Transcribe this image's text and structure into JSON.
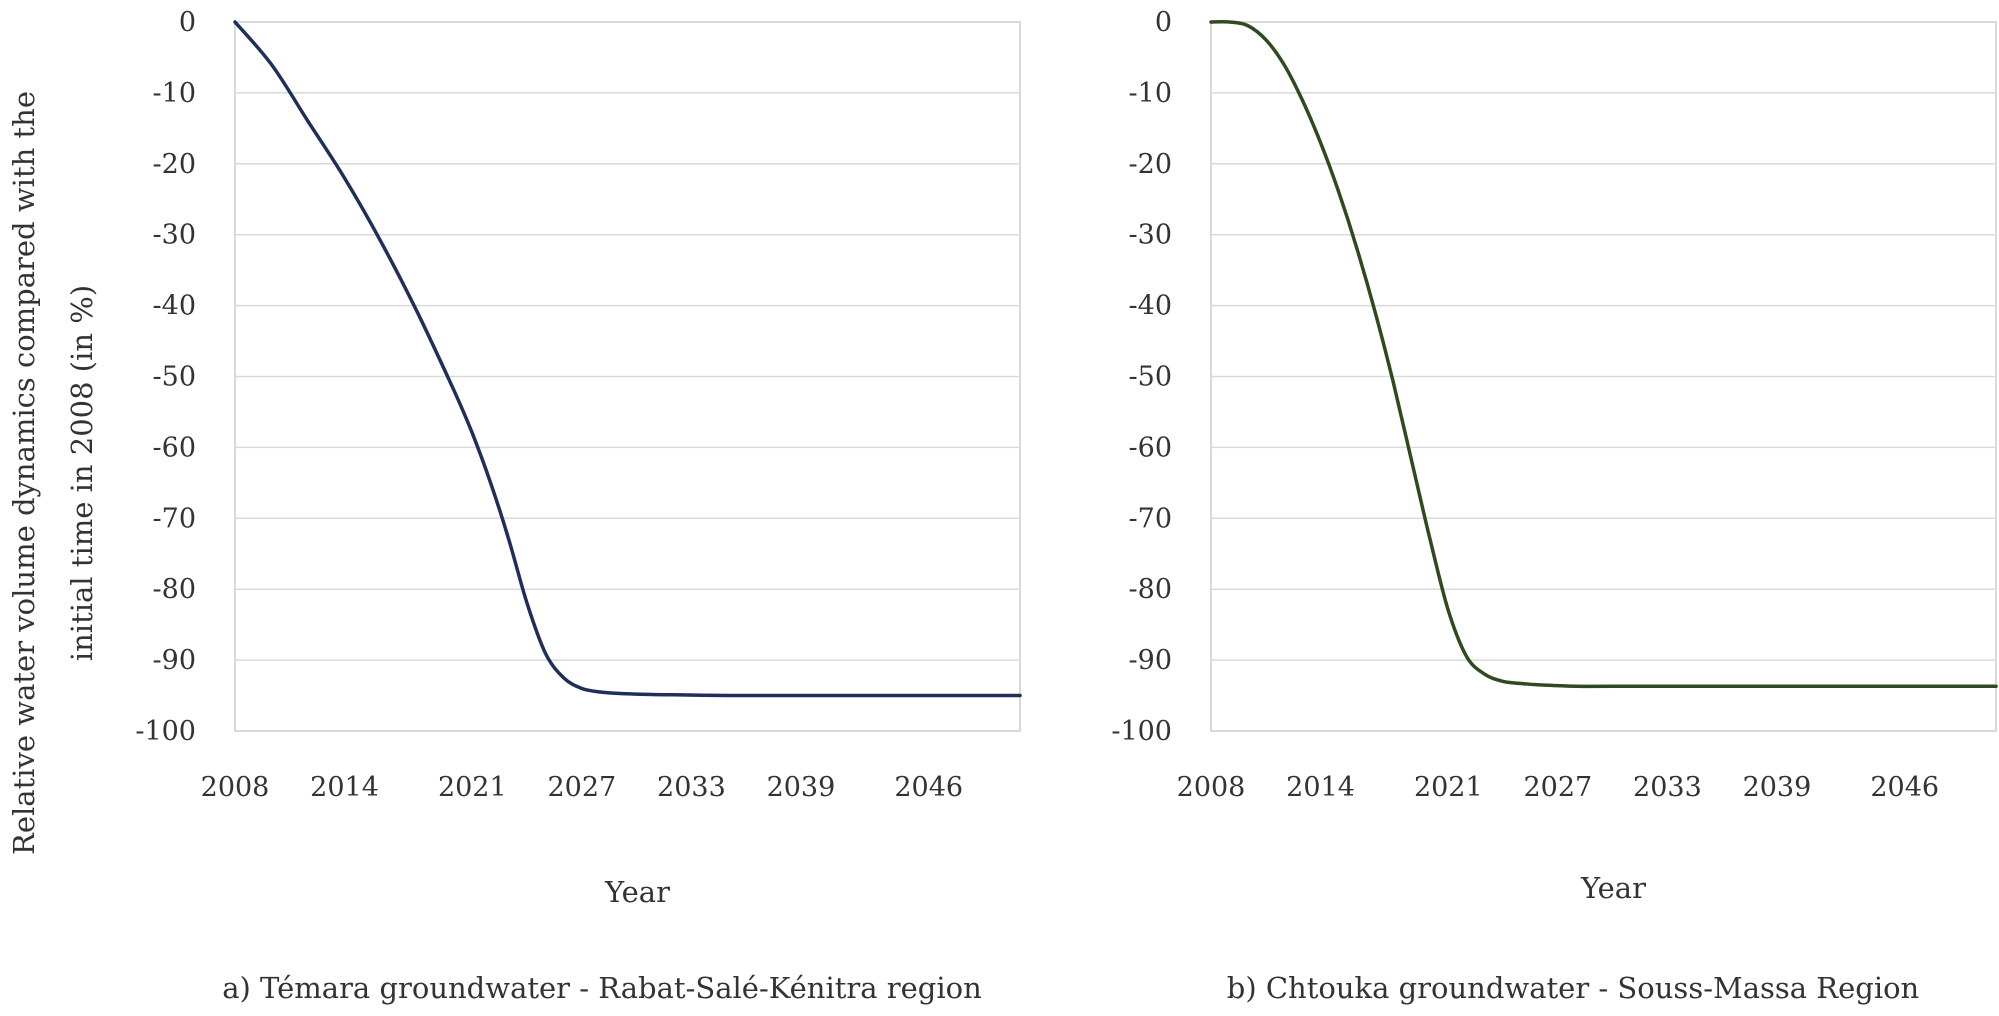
{
  "shared": {
    "ylabel_line1": "Relative water volume dynamics compared with the",
    "ylabel_line2": "initial time in 2008   (in %)"
  },
  "chart_data": [
    {
      "type": "line",
      "caption": "a) Témara groundwater - Rabat-Salé-Kénitra region",
      "xlabel": "Year",
      "ylabel": "Relative water volume dynamics compared with the initial time in 2008 (in %)",
      "xlim": [
        2008,
        2051
      ],
      "ylim": [
        -100,
        0
      ],
      "x_ticks": [
        2008,
        2014,
        2021,
        2027,
        2033,
        2039,
        2046
      ],
      "x_tick_labels": [
        "2008",
        "2014",
        "2021",
        "2027",
        "2033",
        "2039",
        "2046"
      ],
      "y_ticks": [
        0,
        -10,
        -20,
        -30,
        -40,
        -50,
        -60,
        -70,
        -80,
        -90,
        -100
      ],
      "y_tick_labels": [
        "0",
        "-10",
        "-20",
        "-30",
        "-40",
        "-50",
        "-60",
        "-70",
        "-80",
        "-90",
        "-100"
      ],
      "grid": "horizontal",
      "line_color": "#1f2f5a",
      "series": [
        {
          "x": [
            2008,
            2010,
            2012,
            2014,
            2016,
            2018,
            2020,
            2021,
            2022,
            2023,
            2024,
            2025,
            2026,
            2027,
            2028,
            2029,
            2030,
            2032,
            2035,
            2040,
            2045,
            2051
          ],
          "values": [
            0,
            -6,
            -14,
            -22,
            -31,
            -41,
            -52,
            -58,
            -65,
            -73,
            -82,
            -89,
            -92.5,
            -94,
            -94.5,
            -94.7,
            -94.8,
            -94.9,
            -95,
            -95,
            -95,
            -95
          ]
        }
      ]
    },
    {
      "type": "line",
      "caption": "b) Chtouka groundwater - Souss-Massa Region",
      "xlabel": "Year",
      "xlim": [
        2008,
        2051
      ],
      "ylim": [
        -100,
        0
      ],
      "x_ticks": [
        2008,
        2014,
        2021,
        2027,
        2033,
        2039,
        2046
      ],
      "x_tick_labels": [
        "2008",
        "2014",
        "2021",
        "2027",
        "2033",
        "2039",
        "2046"
      ],
      "y_ticks": [
        0,
        -10,
        -20,
        -30,
        -40,
        -50,
        -60,
        -70,
        -80,
        -90,
        -100
      ],
      "y_tick_labels": [
        "0",
        "-10",
        "-20",
        "-30",
        "-40",
        "-50",
        "-60",
        "-70",
        "-80",
        "-90",
        "-100"
      ],
      "grid": "horizontal",
      "line_color": "#2f4a1e",
      "series": [
        {
          "x": [
            2008,
            2009,
            2010,
            2011,
            2012,
            2013,
            2014,
            2015,
            2016,
            2017,
            2018,
            2019,
            2020,
            2021,
            2022,
            2023,
            2024,
            2025,
            2026,
            2027,
            2028,
            2030,
            2035,
            2040,
            2045,
            2051
          ],
          "values": [
            0,
            0,
            -0.5,
            -2.5,
            -6,
            -11,
            -17,
            -24,
            -32,
            -41,
            -51,
            -62,
            -73,
            -83,
            -89.5,
            -92,
            -93,
            -93.3,
            -93.5,
            -93.6,
            -93.7,
            -93.7,
            -93.7,
            -93.7,
            -93.7,
            -93.7
          ]
        }
      ]
    }
  ]
}
